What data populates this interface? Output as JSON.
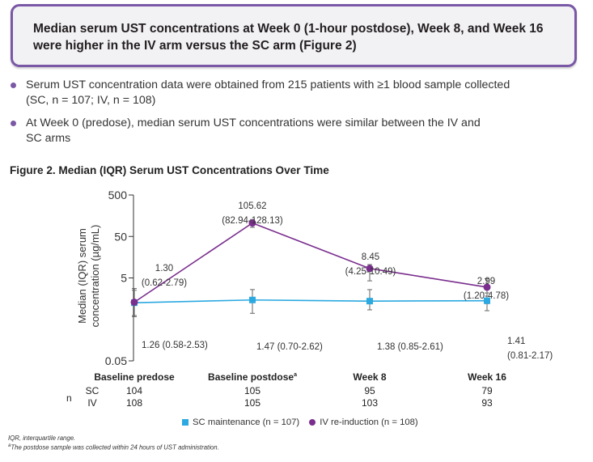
{
  "callout": {
    "line1": "Median serum UST concentrations at Week 0 (1-hour postdose), Week 8, and Week 16",
    "line2": "were higher in the IV arm versus the SC arm (Figure 2)"
  },
  "bullets": [
    {
      "line1": "Serum UST concentration data were obtained from 215 patients with ≥1 blood sample collected",
      "line2": "(SC, n = 107; IV, n = 108)"
    },
    {
      "line1": "At Week 0 (predose), median serum UST concentrations were similar between the IV and",
      "line2": "SC arms"
    }
  ],
  "figure_title": "Figure 2. Median (IQR) Serum UST Concentrations Over Time",
  "footnotes": {
    "abbrev": "IQR, interquartile range.",
    "note_marker": "a",
    "note": "The postdose sample was collected within 24 hours of UST administration."
  },
  "colors": {
    "sc": "#2ba9e0",
    "iv": "#7a2e8e"
  },
  "chart_data": {
    "type": "line",
    "ylabel_line1": "Median (IQR) serum",
    "ylabel_line2": "concentration (µg/mL)",
    "yscale": "log",
    "ylim": [
      0.05,
      500
    ],
    "yticks": [
      "500",
      "50",
      "5",
      "0.05"
    ],
    "ytick_values": [
      500,
      50,
      5,
      0.05
    ],
    "categories": [
      "Baseline predose",
      "Baseline postdose",
      "Week 8",
      "Week 16"
    ],
    "category_superscripts": [
      "",
      "a",
      "",
      ""
    ],
    "series": [
      {
        "name": "SC maintenance (n = 107)",
        "key": "sc",
        "values": [
          1.26,
          1.47,
          1.38,
          1.41
        ],
        "q1": [
          0.58,
          0.7,
          0.85,
          0.81
        ],
        "q3": [
          2.53,
          2.62,
          2.61,
          2.17
        ],
        "labels": [
          "1.26 (0.58-2.53)",
          "1.47 (0.70-2.62)",
          "1.38 (0.85-2.61)",
          "1.41\n(0.81-2.17)"
        ]
      },
      {
        "name": "IV re-induction (n = 108)",
        "key": "iv",
        "values": [
          1.3,
          105.62,
          8.45,
          2.99
        ],
        "q1": [
          0.62,
          82.94,
          4.25,
          1.2
        ],
        "q3": [
          2.79,
          128.13,
          10.49,
          4.78
        ],
        "labels": [
          "1.30\n(0.62-2.79)",
          "105.62\n(82.94-128.13)",
          "8.45\n(4.25-10.49)",
          "2.99\n(1.20-4.78)"
        ]
      }
    ],
    "n_table": {
      "label": "n",
      "rows": [
        {
          "name": "SC",
          "values": [
            "104",
            "105",
            "95",
            "79"
          ]
        },
        {
          "name": "IV",
          "values": [
            "108",
            "105",
            "103",
            "93"
          ]
        }
      ]
    },
    "legend": "bottom",
    "grid": false
  }
}
